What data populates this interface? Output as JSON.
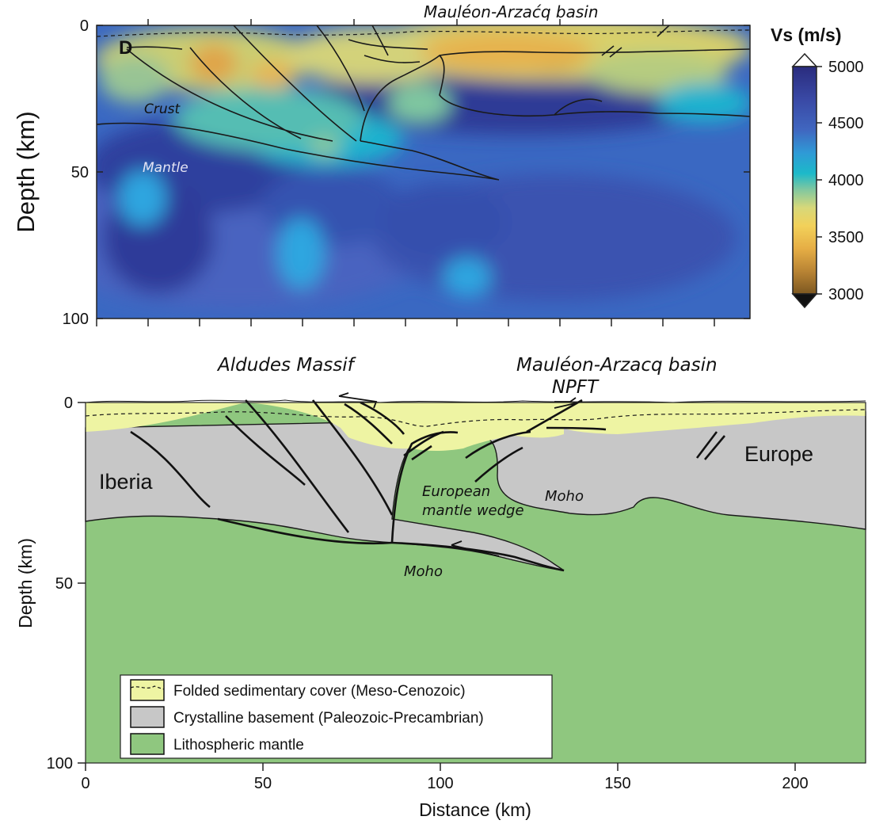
{
  "top_panel": {
    "panel_letter": "D",
    "top_label": "Mauléon-Arzaćq basin",
    "crust_label": "Crust",
    "mantle_label": "Mantle",
    "ylabel": "Depth (km)",
    "yticks": [
      "0",
      "50",
      "100"
    ],
    "colorbar": {
      "title": "Vs (m/s)",
      "ticks": [
        "5000",
        "4500",
        "4000",
        "3500",
        "3000"
      ],
      "range": [
        3000,
        5000
      ],
      "colors": [
        "#2a2c7e",
        "#3a4aa6",
        "#4067c0",
        "#2f9ad6",
        "#1cb9c9",
        "#7fc7a0",
        "#d7d87a",
        "#f2d15a",
        "#e6ae45",
        "#b98434",
        "#7d5821"
      ]
    }
  },
  "bottom_panel": {
    "label_aldudes": "Aldudes Massif",
    "label_mauleon": "Mauléon-Arzacq basin",
    "label_npft": "NPFT",
    "label_iberia": "Iberia",
    "label_europe": "Europe",
    "label_moho_right": "Moho",
    "label_moho_left": "Moho",
    "label_wedge_1": "European",
    "label_wedge_2": "mantle wedge",
    "ylabel": "Depth (km)",
    "xlabel": "Distance (km)",
    "yticks": [
      "0",
      "50",
      "100"
    ],
    "xticks": [
      "0",
      "50",
      "100",
      "150",
      "200"
    ],
    "colors": {
      "sediment": "#eef4a3",
      "basement": "#c7c7c7",
      "mantle": "#8fc77f"
    },
    "legend": [
      {
        "label": "Folded sedimentary cover (Meso-Cenozoic)",
        "swatch": "#eef4a3"
      },
      {
        "label": "Crystalline basement (Paleozoic-Precambrian)",
        "swatch": "#c7c7c7"
      },
      {
        "label": "Lithospheric mantle",
        "swatch": "#8fc77f"
      }
    ]
  }
}
